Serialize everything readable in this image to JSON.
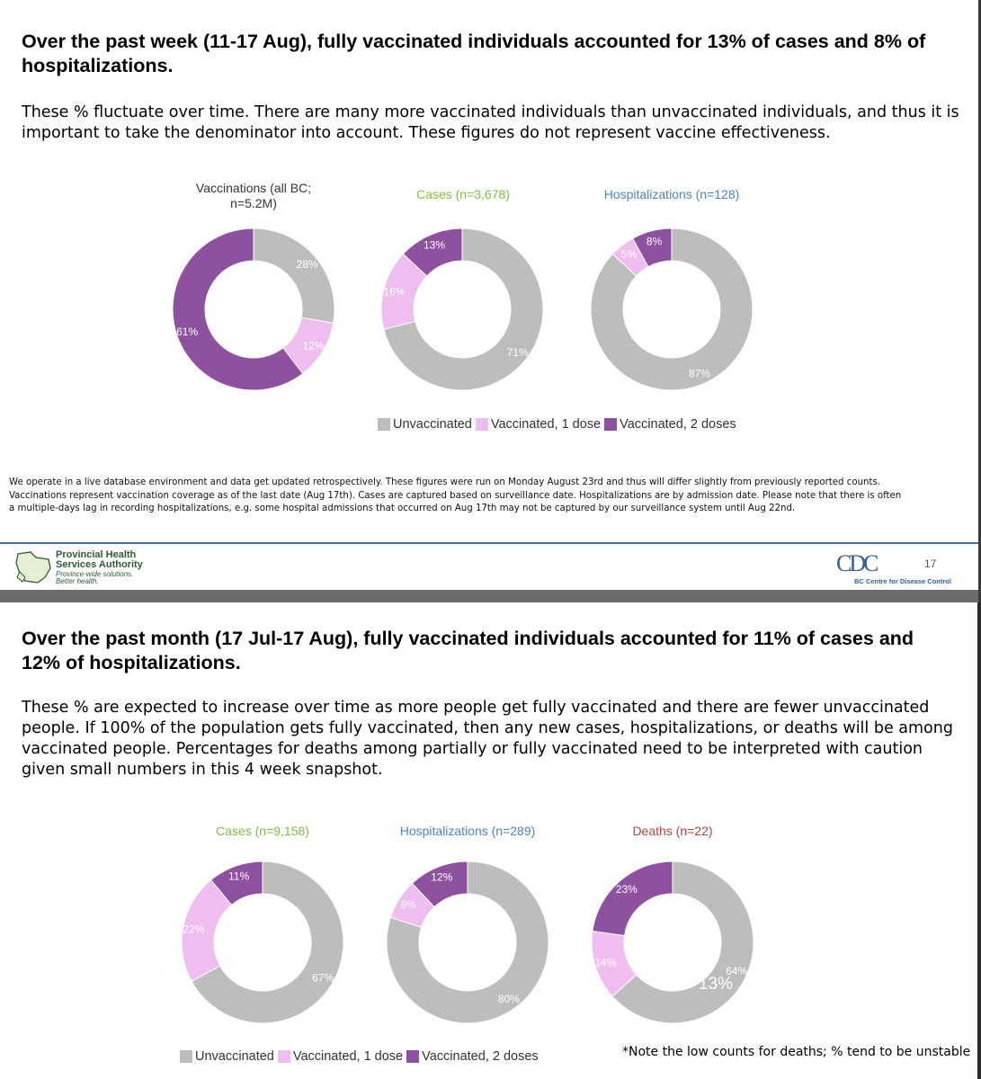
{
  "slide1": {
    "headline": "Over the past week (11-17 Aug), fully vaccinated individuals accounted for 13% of cases and 8% of hospitalizations.",
    "subtext": "These % fluctuate over time. There are many more vaccinated individuals than unvaccinated individuals, and thus it is important to take the denominator into account. These figures do not represent vaccine effectiveness.",
    "footnote": [
      "We operate in a live database environment and data get updated retrospectively. These figures were run on Monday August 23rd and thus will differ slightly from previously reported counts.",
      "Vaccinations represent vaccination coverage as of the last date (Aug 17th). Cases are captured based on surveillance date. Hospitalizations are by admission date. Please note that there is often",
      "a multiple-days lag in recording hospitalizations, e.g. some hospital admissions that occurred on Aug 17th may not be captured by our surveillance system until Aug 22nd."
    ],
    "footer": {
      "org_line1": "Provincial Health",
      "org_line2": "Services Authority",
      "tagline1": "Province-wide solutions.",
      "tagline2": "Better health.",
      "cdc_logo": "CDC",
      "cdc_name": "BC Centre for Disease Control",
      "page_number": "17"
    }
  },
  "slide2": {
    "headline": "Over the past month (17 Jul-17 Aug), fully vaccinated individuals accounted for 11% of cases and 12% of hospitalizations.",
    "subtext": "These % are expected to increase over time as more people get fully vaccinated and there are fewer unvaccinated people. If 100% of the population gets fully vaccinated, then any new cases, hospitalizations, or deaths will be among vaccinated people. Percentages for deaths among partially or fully vaccinated need to be interpreted with caution given small numbers in this 4 week snapshot.",
    "note": "*Note the low counts for deaths; % tend to be unstable",
    "overlay_label": "13%"
  },
  "legend": {
    "unvaccinated": "Unvaccinated",
    "one_dose": "Vaccinated, 1 dose",
    "two_doses": "Vaccinated, 2 doses"
  },
  "colors": {
    "unvaccinated": "#bdbdbd",
    "one_dose": "#efbdef",
    "two_doses": "#8e51a0"
  },
  "chart_data": [
    {
      "type": "pie",
      "variant": "donut",
      "title": "Vaccinations (all BC; n=5.2M)",
      "categories": [
        "Unvaccinated",
        "Vaccinated, 1 dose",
        "Vaccinated, 2 doses"
      ],
      "values": [
        28,
        12,
        61
      ],
      "labels": [
        "28%",
        "12%",
        "61%"
      ]
    },
    {
      "type": "pie",
      "variant": "donut",
      "title": "Cases (n=3,678)",
      "categories": [
        "Unvaccinated",
        "Vaccinated, 1 dose",
        "Vaccinated, 2 doses"
      ],
      "values": [
        71,
        16,
        13
      ],
      "labels": [
        "71%",
        "16%",
        "13%"
      ]
    },
    {
      "type": "pie",
      "variant": "donut",
      "title": "Hospitalizations (n=128)",
      "categories": [
        "Unvaccinated",
        "Vaccinated, 1 dose",
        "Vaccinated, 2 doses"
      ],
      "values": [
        87,
        5,
        8
      ],
      "labels": [
        "87%",
        "5%",
        "8%"
      ]
    },
    {
      "type": "pie",
      "variant": "donut",
      "title": "Cases (n=9,158)",
      "categories": [
        "Unvaccinated",
        "Vaccinated, 1 dose",
        "Vaccinated, 2 doses"
      ],
      "values": [
        67,
        22,
        11
      ],
      "labels": [
        "67%",
        "22%",
        "11%"
      ]
    },
    {
      "type": "pie",
      "variant": "donut",
      "title": "Hospitalizations (n=289)",
      "categories": [
        "Unvaccinated",
        "Vaccinated, 1 dose",
        "Vaccinated, 2 doses"
      ],
      "values": [
        80,
        8,
        12
      ],
      "labels": [
        "80%",
        "8%",
        "12%"
      ]
    },
    {
      "type": "pie",
      "variant": "donut",
      "title": "Deaths (n=22)",
      "categories": [
        "Unvaccinated",
        "Vaccinated, 1 dose",
        "Vaccinated, 2 doses"
      ],
      "values": [
        64,
        14,
        23
      ],
      "labels": [
        "64%",
        "14%",
        "23%"
      ]
    }
  ]
}
